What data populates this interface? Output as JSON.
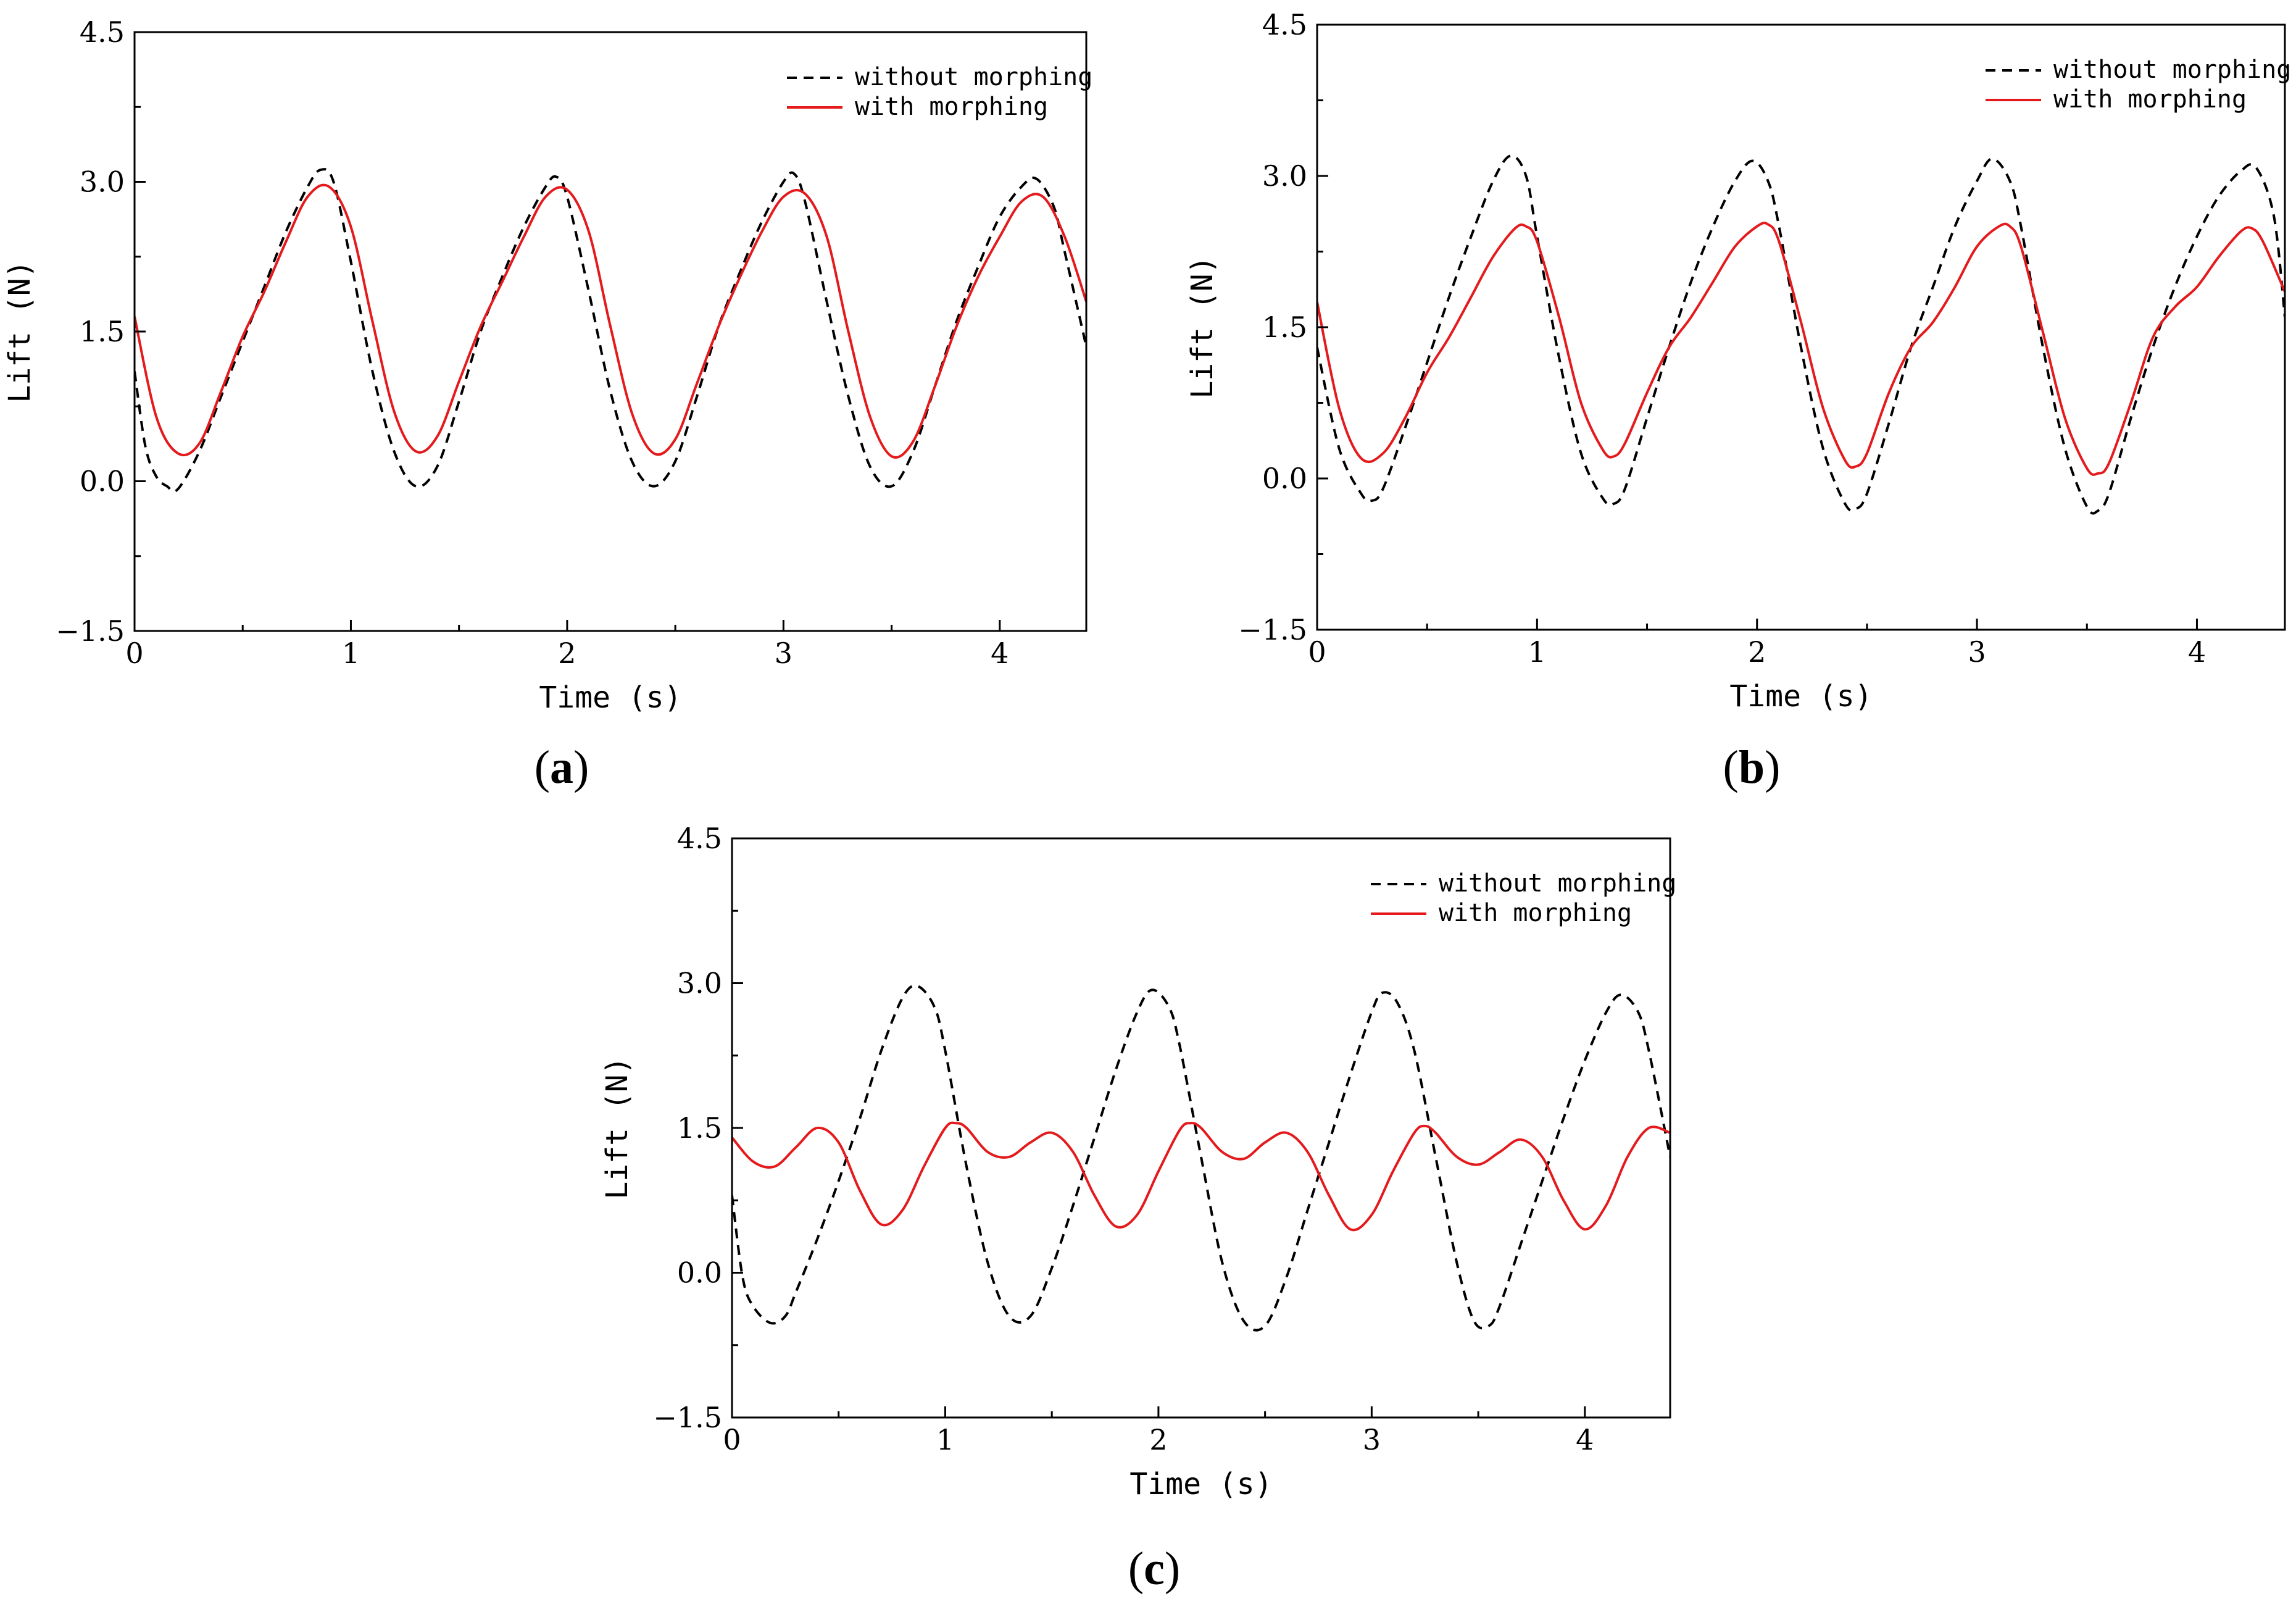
{
  "chart_data": [
    {
      "type": "line",
      "panel_label": "a",
      "xlabel": "Time (s)",
      "ylabel": "Lift (N)",
      "xlim": [
        0,
        4.4
      ],
      "ylim": [
        -1.5,
        4.5
      ],
      "xticks": [
        0,
        1,
        2,
        3,
        4
      ],
      "yticks": [
        -1.5,
        0.0,
        1.5,
        3.0,
        4.5
      ],
      "legend_position": "top-right",
      "series": [
        {
          "name": "without morphing",
          "color": "#000000",
          "style": "dashed",
          "x": [
            0.0,
            0.05,
            0.1,
            0.15,
            0.2,
            0.3,
            0.4,
            0.5,
            0.6,
            0.7,
            0.8,
            0.86,
            0.92,
            1.0,
            1.1,
            1.2,
            1.3,
            1.4,
            1.5,
            1.6,
            1.7,
            1.8,
            1.9,
            1.95,
            2.0,
            2.1,
            2.2,
            2.3,
            2.4,
            2.5,
            2.6,
            2.7,
            2.8,
            2.9,
            3.0,
            3.05,
            3.1,
            3.2,
            3.3,
            3.4,
            3.5,
            3.6,
            3.7,
            3.8,
            3.9,
            4.0,
            4.1,
            4.17,
            4.25,
            4.3,
            4.4
          ],
          "y": [
            1.1,
            0.35,
            0.05,
            -0.05,
            -0.08,
            0.3,
            0.85,
            1.4,
            1.95,
            2.5,
            2.95,
            3.12,
            3.0,
            2.2,
            1.1,
            0.3,
            -0.05,
            0.15,
            0.8,
            1.5,
            2.05,
            2.55,
            2.95,
            3.05,
            2.85,
            1.9,
            0.9,
            0.2,
            -0.05,
            0.2,
            0.85,
            1.55,
            2.1,
            2.6,
            3.0,
            3.08,
            2.8,
            1.8,
            0.85,
            0.15,
            -0.05,
            0.3,
            0.95,
            1.6,
            2.15,
            2.65,
            2.95,
            3.03,
            2.75,
            2.3,
            1.35
          ]
        },
        {
          "name": "with morphing",
          "color": "#e41a1c",
          "style": "solid",
          "x": [
            0.0,
            0.1,
            0.2,
            0.3,
            0.4,
            0.5,
            0.6,
            0.7,
            0.8,
            0.9,
            1.0,
            1.1,
            1.2,
            1.3,
            1.4,
            1.5,
            1.6,
            1.7,
            1.8,
            1.9,
            2.0,
            2.1,
            2.2,
            2.3,
            2.4,
            2.5,
            2.6,
            2.7,
            2.8,
            2.9,
            3.0,
            3.1,
            3.2,
            3.3,
            3.4,
            3.5,
            3.6,
            3.7,
            3.8,
            3.9,
            4.0,
            4.1,
            4.2,
            4.3,
            4.4
          ],
          "y": [
            1.65,
            0.65,
            0.28,
            0.38,
            0.9,
            1.45,
            1.9,
            2.4,
            2.85,
            2.95,
            2.55,
            1.6,
            0.7,
            0.3,
            0.45,
            1.0,
            1.55,
            2.0,
            2.45,
            2.85,
            2.92,
            2.5,
            1.55,
            0.68,
            0.28,
            0.42,
            0.98,
            1.55,
            2.05,
            2.5,
            2.85,
            2.88,
            2.45,
            1.5,
            0.65,
            0.25,
            0.4,
            0.95,
            1.55,
            2.05,
            2.45,
            2.8,
            2.85,
            2.45,
            1.8
          ]
        }
      ]
    },
    {
      "type": "line",
      "panel_label": "b",
      "xlabel": "Time (s)",
      "ylabel": "Lift (N)",
      "xlim": [
        0,
        4.4
      ],
      "ylim": [
        -1.5,
        4.5
      ],
      "xticks": [
        0,
        1,
        2,
        3,
        4
      ],
      "yticks": [
        -1.5,
        0.0,
        1.5,
        3.0,
        4.5
      ],
      "legend_position": "top-right",
      "series": [
        {
          "name": "without morphing",
          "color": "#000000",
          "style": "dashed",
          "x": [
            0.0,
            0.1,
            0.2,
            0.25,
            0.3,
            0.4,
            0.5,
            0.6,
            0.7,
            0.8,
            0.88,
            0.95,
            1.0,
            1.1,
            1.2,
            1.3,
            1.35,
            1.4,
            1.5,
            1.6,
            1.7,
            1.8,
            1.9,
            1.98,
            2.05,
            2.1,
            2.2,
            2.3,
            2.4,
            2.45,
            2.5,
            2.6,
            2.7,
            2.8,
            2.9,
            3.0,
            3.07,
            3.15,
            3.2,
            3.3,
            3.4,
            3.5,
            3.55,
            3.6,
            3.7,
            3.8,
            3.9,
            4.0,
            4.1,
            4.2,
            4.27,
            4.35,
            4.4
          ],
          "y": [
            1.3,
            0.3,
            -0.15,
            -0.22,
            -0.1,
            0.5,
            1.15,
            1.8,
            2.4,
            2.95,
            3.2,
            3.0,
            2.4,
            1.2,
            0.25,
            -0.2,
            -0.25,
            -0.1,
            0.6,
            1.3,
            1.95,
            2.5,
            2.95,
            3.15,
            2.95,
            2.5,
            1.3,
            0.3,
            -0.25,
            -0.3,
            -0.15,
            0.55,
            1.3,
            1.9,
            2.5,
            2.95,
            3.17,
            2.95,
            2.5,
            1.3,
            0.3,
            -0.28,
            -0.32,
            -0.15,
            0.6,
            1.3,
            1.9,
            2.4,
            2.8,
            3.05,
            3.08,
            2.6,
            1.6
          ]
        },
        {
          "name": "with morphing",
          "color": "#e41a1c",
          "style": "solid",
          "x": [
            0.0,
            0.1,
            0.2,
            0.3,
            0.4,
            0.5,
            0.6,
            0.7,
            0.8,
            0.9,
            0.95,
            1.0,
            1.1,
            1.2,
            1.3,
            1.35,
            1.4,
            1.5,
            1.6,
            1.7,
            1.8,
            1.9,
            2.0,
            2.05,
            2.1,
            2.2,
            2.3,
            2.4,
            2.45,
            2.5,
            2.6,
            2.7,
            2.8,
            2.9,
            3.0,
            3.1,
            3.15,
            3.2,
            3.3,
            3.4,
            3.5,
            3.55,
            3.6,
            3.7,
            3.8,
            3.9,
            4.0,
            4.1,
            4.2,
            4.25,
            4.3,
            4.4
          ],
          "y": [
            1.75,
            0.7,
            0.2,
            0.25,
            0.6,
            1.05,
            1.4,
            1.8,
            2.2,
            2.48,
            2.5,
            2.35,
            1.6,
            0.75,
            0.28,
            0.22,
            0.35,
            0.85,
            1.3,
            1.6,
            1.95,
            2.3,
            2.5,
            2.52,
            2.35,
            1.55,
            0.7,
            0.18,
            0.12,
            0.25,
            0.85,
            1.3,
            1.55,
            1.9,
            2.3,
            2.5,
            2.5,
            2.3,
            1.45,
            0.6,
            0.1,
            0.05,
            0.15,
            0.75,
            1.4,
            1.7,
            1.9,
            2.2,
            2.45,
            2.48,
            2.35,
            1.85
          ]
        }
      ]
    },
    {
      "type": "line",
      "panel_label": "c",
      "xlabel": "Time (s)",
      "ylabel": "Lift (N)",
      "xlim": [
        0,
        4.4
      ],
      "ylim": [
        -1.5,
        4.5
      ],
      "xticks": [
        0,
        1,
        2,
        3,
        4
      ],
      "yticks": [
        -1.5,
        0.0,
        1.5,
        3.0,
        4.5
      ],
      "legend_position": "top-right",
      "series": [
        {
          "name": "without morphing",
          "color": "#000000",
          "style": "dashed",
          "x": [
            0.0,
            0.05,
            0.1,
            0.18,
            0.25,
            0.3,
            0.4,
            0.5,
            0.6,
            0.7,
            0.8,
            0.87,
            0.95,
            1.0,
            1.1,
            1.2,
            1.3,
            1.4,
            1.5,
            1.6,
            1.7,
            1.8,
            1.9,
            1.97,
            2.05,
            2.1,
            2.2,
            2.3,
            2.4,
            2.5,
            2.6,
            2.7,
            2.8,
            2.9,
            3.0,
            3.05,
            3.12,
            3.2,
            3.3,
            3.4,
            3.48,
            3.55,
            3.6,
            3.7,
            3.8,
            3.9,
            4.0,
            4.1,
            4.17,
            4.25,
            4.3,
            4.4
          ],
          "y": [
            0.8,
            -0.05,
            -0.35,
            -0.52,
            -0.45,
            -0.2,
            0.35,
            0.95,
            1.6,
            2.3,
            2.85,
            2.97,
            2.75,
            2.3,
            1.1,
            0.1,
            -0.45,
            -0.45,
            0.05,
            0.7,
            1.4,
            2.1,
            2.7,
            2.93,
            2.75,
            2.35,
            1.2,
            0.1,
            -0.5,
            -0.55,
            -0.05,
            0.65,
            1.35,
            2.05,
            2.7,
            2.9,
            2.8,
            2.3,
            1.2,
            0.1,
            -0.5,
            -0.55,
            -0.35,
            0.3,
            0.95,
            1.6,
            2.2,
            2.7,
            2.88,
            2.7,
            2.3,
            1.2
          ]
        },
        {
          "name": "with morphing",
          "color": "#e41a1c",
          "style": "solid",
          "x": [
            0.0,
            0.1,
            0.2,
            0.3,
            0.4,
            0.5,
            0.6,
            0.7,
            0.8,
            0.9,
            1.0,
            1.05,
            1.1,
            1.2,
            1.3,
            1.4,
            1.5,
            1.6,
            1.7,
            1.8,
            1.9,
            2.0,
            2.1,
            2.15,
            2.2,
            2.3,
            2.4,
            2.5,
            2.6,
            2.7,
            2.8,
            2.9,
            3.0,
            3.1,
            3.2,
            3.25,
            3.3,
            3.4,
            3.5,
            3.6,
            3.7,
            3.8,
            3.9,
            4.0,
            4.1,
            4.2,
            4.3,
            4.4
          ],
          "y": [
            1.4,
            1.15,
            1.1,
            1.3,
            1.5,
            1.35,
            0.85,
            0.5,
            0.65,
            1.1,
            1.5,
            1.55,
            1.5,
            1.25,
            1.2,
            1.35,
            1.45,
            1.25,
            0.8,
            0.48,
            0.6,
            1.05,
            1.48,
            1.55,
            1.5,
            1.25,
            1.18,
            1.35,
            1.45,
            1.25,
            0.8,
            0.45,
            0.6,
            1.05,
            1.45,
            1.52,
            1.45,
            1.2,
            1.12,
            1.25,
            1.38,
            1.2,
            0.75,
            0.45,
            0.7,
            1.2,
            1.5,
            1.45
          ]
        }
      ]
    }
  ]
}
